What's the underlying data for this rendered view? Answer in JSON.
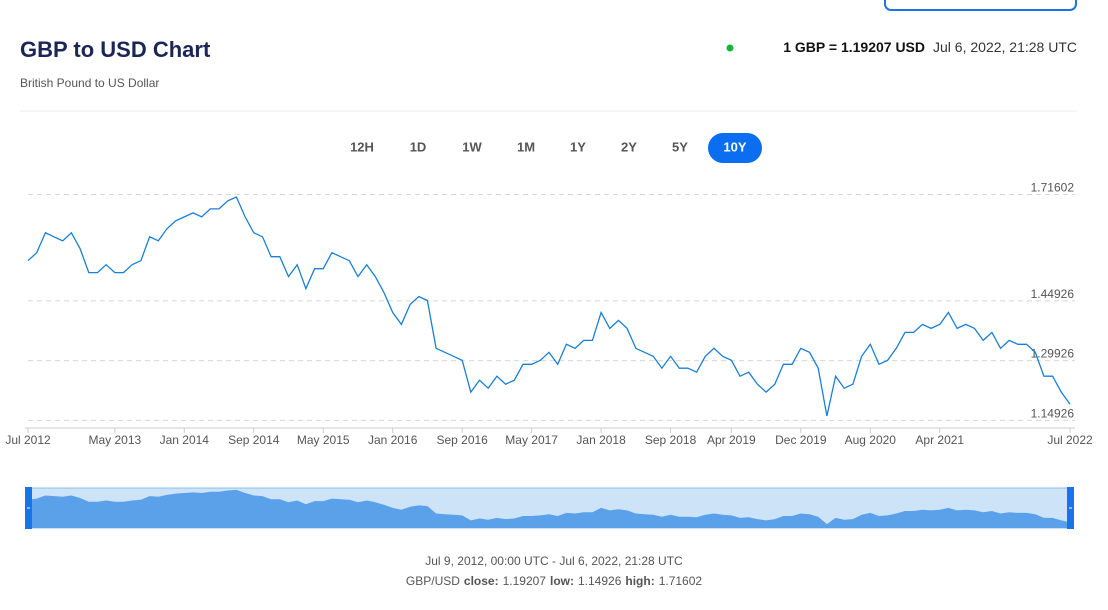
{
  "header": {
    "title": "GBP to USD Chart",
    "subtitle": "British Pound to US Dollar",
    "rate": "1 GBP = 1.19207 USD",
    "timestamp": "Jul 6, 2022, 21:28 UTC"
  },
  "tabs": {
    "items": [
      "12H",
      "1D",
      "1W",
      "1M",
      "1Y",
      "2Y",
      "5Y",
      "10Y"
    ],
    "selected": "10Y"
  },
  "chart_data": {
    "type": "line",
    "color": "#1a7fd6",
    "grid": true,
    "x": [
      "Jul 2012",
      "Aug 2012",
      "Sep 2012",
      "Oct 2012",
      "Nov 2012",
      "Dec 2012",
      "Jan 2013",
      "Feb 2013",
      "Mar 2013",
      "Apr 2013",
      "May 2013",
      "Jun 2013",
      "Jul 2013",
      "Aug 2013",
      "Sep 2013",
      "Oct 2013",
      "Nov 2013",
      "Dec 2013",
      "Jan 2014",
      "Feb 2014",
      "Mar 2014",
      "Apr 2014",
      "May 2014",
      "Jun 2014",
      "Jul 2014",
      "Aug 2014",
      "Sep 2014",
      "Oct 2014",
      "Nov 2014",
      "Dec 2014",
      "Jan 2015",
      "Feb 2015",
      "Mar 2015",
      "Apr 2015",
      "May 2015",
      "Jun 2015",
      "Jul 2015",
      "Aug 2015",
      "Sep 2015",
      "Oct 2015",
      "Nov 2015",
      "Dec 2015",
      "Jan 2016",
      "Feb 2016",
      "Mar 2016",
      "Apr 2016",
      "May 2016",
      "Jun 2016",
      "Jul 2016",
      "Aug 2016",
      "Sep 2016",
      "Oct 2016",
      "Nov 2016",
      "Dec 2016",
      "Jan 2017",
      "Feb 2017",
      "Mar 2017",
      "Apr 2017",
      "May 2017",
      "Jun 2017",
      "Jul 2017",
      "Aug 2017",
      "Sep 2017",
      "Oct 2017",
      "Nov 2017",
      "Dec 2017",
      "Jan 2018",
      "Feb 2018",
      "Mar 2018",
      "Apr 2018",
      "May 2018",
      "Jun 2018",
      "Jul 2018",
      "Aug 2018",
      "Sep 2018",
      "Oct 2018",
      "Nov 2018",
      "Dec 2018",
      "Jan 2019",
      "Feb 2019",
      "Mar 2019",
      "Apr 2019",
      "May 2019",
      "Jun 2019",
      "Jul 2019",
      "Aug 2019",
      "Sep 2019",
      "Oct 2019",
      "Nov 2019",
      "Dec 2019",
      "Jan 2020",
      "Feb 2020",
      "Mar 2020",
      "Apr 2020",
      "May 2020",
      "Jun 2020",
      "Jul 2020",
      "Aug 2020",
      "Sep 2020",
      "Oct 2020",
      "Nov 2020",
      "Dec 2020",
      "Jan 2021",
      "Feb 2021",
      "Mar 2021",
      "Apr 2021",
      "May 2021",
      "Jun 2021",
      "Jul 2021",
      "Aug 2021",
      "Sep 2021",
      "Oct 2021",
      "Nov 2021",
      "Dec 2021",
      "Jan 2022",
      "Feb 2022",
      "Mar 2022",
      "Apr 2022",
      "May 2022",
      "Jun 2022",
      "Jul 2022"
    ],
    "values": [
      1.55,
      1.57,
      1.62,
      1.61,
      1.6,
      1.62,
      1.58,
      1.52,
      1.52,
      1.54,
      1.52,
      1.52,
      1.54,
      1.55,
      1.61,
      1.6,
      1.63,
      1.65,
      1.66,
      1.67,
      1.66,
      1.68,
      1.68,
      1.7,
      1.71,
      1.66,
      1.62,
      1.61,
      1.56,
      1.56,
      1.51,
      1.54,
      1.48,
      1.53,
      1.53,
      1.57,
      1.56,
      1.55,
      1.51,
      1.54,
      1.51,
      1.47,
      1.42,
      1.39,
      1.44,
      1.46,
      1.45,
      1.33,
      1.32,
      1.31,
      1.3,
      1.22,
      1.25,
      1.23,
      1.26,
      1.24,
      1.25,
      1.29,
      1.29,
      1.3,
      1.32,
      1.29,
      1.34,
      1.33,
      1.35,
      1.35,
      1.42,
      1.38,
      1.4,
      1.38,
      1.33,
      1.32,
      1.31,
      1.28,
      1.31,
      1.28,
      1.28,
      1.27,
      1.31,
      1.33,
      1.31,
      1.3,
      1.26,
      1.27,
      1.24,
      1.22,
      1.24,
      1.29,
      1.29,
      1.33,
      1.32,
      1.28,
      1.16,
      1.26,
      1.23,
      1.24,
      1.31,
      1.34,
      1.29,
      1.3,
      1.33,
      1.37,
      1.37,
      1.39,
      1.38,
      1.39,
      1.42,
      1.38,
      1.39,
      1.38,
      1.35,
      1.37,
      1.33,
      1.35,
      1.34,
      1.34,
      1.32,
      1.26,
      1.26,
      1.22,
      1.19
    ],
    "ylim": [
      1.13,
      1.74
    ],
    "yticks": [
      1.71602,
      1.44926,
      1.29926,
      1.14926
    ],
    "xticks": [
      "Jul 2012",
      "May 2013",
      "Jan 2014",
      "Sep 2014",
      "May 2015",
      "Jan 2016",
      "Sep 2016",
      "May 2017",
      "Jan 2018",
      "Sep 2018",
      "Apr 2019",
      "Dec 2019",
      "Aug 2020",
      "Apr 2021",
      "Jul 2022"
    ]
  },
  "footer": {
    "range": "Jul 9, 2012, 00:00 UTC - Jul 6, 2022, 21:28 UTC",
    "pair": "GBP/USD",
    "stats": [
      {
        "label": "close:",
        "value": "1.19207"
      },
      {
        "label": "low:",
        "value": "1.14926"
      },
      {
        "label": "high:",
        "value": "1.71602"
      }
    ]
  }
}
